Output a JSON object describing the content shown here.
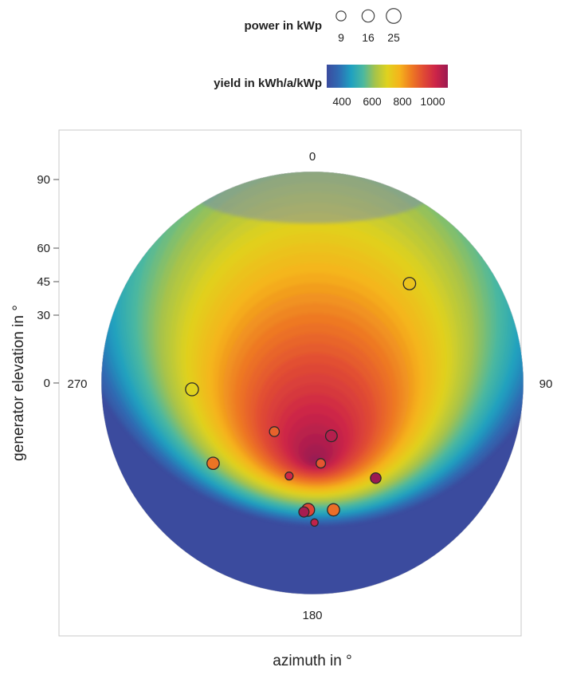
{
  "chart_data": {
    "type": "scatter",
    "projection": "polar",
    "xlabel": "azimuth in °",
    "ylabel": "generator elevation in °",
    "azimuth_labels": [
      {
        "label": "0",
        "azimuth": 0
      },
      {
        "label": "90",
        "azimuth": 90
      },
      {
        "label": "180",
        "azimuth": 180
      },
      {
        "label": "270",
        "azimuth": 270
      }
    ],
    "elevation_ticks": [
      "90",
      "60",
      "45",
      "30",
      "0"
    ],
    "legend": {
      "size_title": "power in kWp",
      "size_values": [
        9,
        16,
        25
      ],
      "color_title": "yield in kWh/a/kWp",
      "color_ticks": [
        "400",
        "600",
        "800",
        "1000"
      ],
      "color_range": [
        300,
        1100
      ],
      "placement": "top"
    },
    "colormap": [
      "#3b4b9e",
      "#2f6bb3",
      "#1fa0c0",
      "#4bb8a0",
      "#a6c34a",
      "#e0d21e",
      "#f5b41c",
      "#ee7a22",
      "#e04a34",
      "#cc2448",
      "#9b1a52"
    ],
    "points": [
      {
        "x": 0.46,
        "y": 0.47,
        "power": 16,
        "yield": 740
      },
      {
        "x": -0.57,
        "y": -0.03,
        "power": 18,
        "yield": 700
      },
      {
        "x": -0.47,
        "y": -0.38,
        "power": 16,
        "yield": 870
      },
      {
        "x": -0.18,
        "y": -0.23,
        "power": 9,
        "yield": 900
      },
      {
        "x": 0.09,
        "y": -0.25,
        "power": 14,
        "yield": 1060
      },
      {
        "x": 0.04,
        "y": -0.38,
        "power": 8,
        "yield": 920
      },
      {
        "x": -0.11,
        "y": -0.44,
        "power": 5,
        "yield": 1010
      },
      {
        "x": 0.3,
        "y": -0.45,
        "power": 11,
        "yield": 1100
      },
      {
        "x": -0.02,
        "y": -0.6,
        "power": 18,
        "yield": 950
      },
      {
        "x": 0.1,
        "y": -0.6,
        "power": 16,
        "yield": 880
      },
      {
        "x": -0.04,
        "y": -0.61,
        "power": 10,
        "yield": 1080
      },
      {
        "x": 0.01,
        "y": -0.66,
        "power": 4,
        "yield": 1040
      }
    ]
  }
}
